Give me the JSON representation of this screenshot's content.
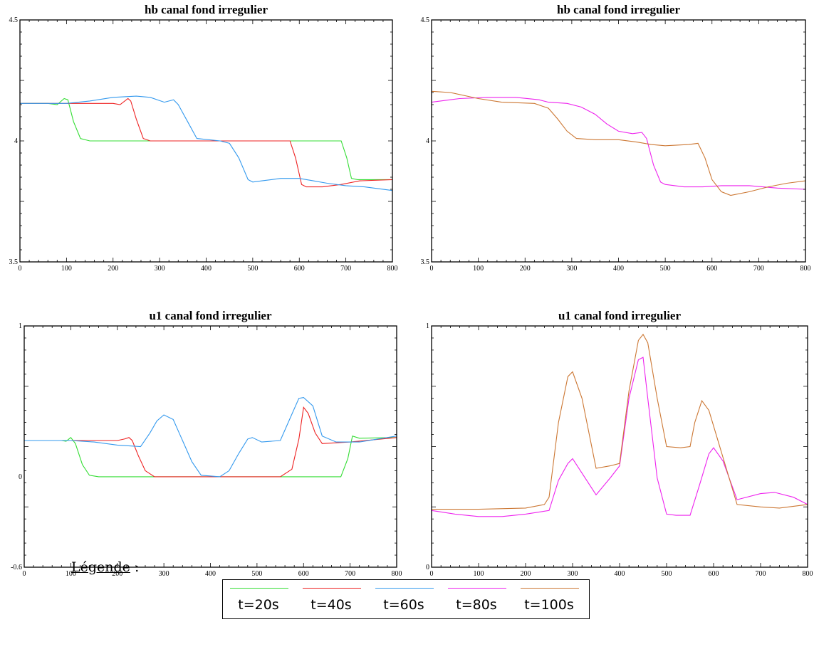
{
  "chart_data": [
    {
      "type": "line",
      "title": "hb canal fond irregulier",
      "xlim": [
        0,
        800
      ],
      "ylim": [
        3.5,
        4.5
      ],
      "xticks": [
        "0",
        "100",
        "200",
        "300",
        "400",
        "500",
        "600",
        "700",
        "800"
      ],
      "yticks": [
        "3.5",
        "4",
        "4.5"
      ],
      "series": [
        {
          "name": "t=20s",
          "color": "#33dd33",
          "points": [
            [
              0,
              4.155
            ],
            [
              60,
              4.155
            ],
            [
              80,
              4.15
            ],
            [
              95,
              4.175
            ],
            [
              103,
              4.17
            ],
            [
              115,
              4.08
            ],
            [
              130,
              4.01
            ],
            [
              150,
              4.0
            ],
            [
              400,
              4.0
            ],
            [
              690,
              4.0
            ],
            [
              702,
              3.93
            ],
            [
              712,
              3.845
            ],
            [
              725,
              3.84
            ],
            [
              800,
              3.84
            ]
          ]
        },
        {
          "name": "t=40s",
          "color": "#ee2222",
          "points": [
            [
              0,
              4.155
            ],
            [
              130,
              4.155
            ],
            [
              200,
              4.155
            ],
            [
              215,
              4.15
            ],
            [
              232,
              4.175
            ],
            [
              238,
              4.165
            ],
            [
              250,
              4.09
            ],
            [
              265,
              4.01
            ],
            [
              280,
              4.0
            ],
            [
              580,
              4.0
            ],
            [
              592,
              3.93
            ],
            [
              605,
              3.82
            ],
            [
              615,
              3.81
            ],
            [
              650,
              3.81
            ],
            [
              690,
              3.82
            ],
            [
              730,
              3.835
            ],
            [
              800,
              3.84
            ]
          ]
        },
        {
          "name": "t=60s",
          "color": "#3399ee",
          "points": [
            [
              0,
              4.155
            ],
            [
              100,
              4.155
            ],
            [
              150,
              4.165
            ],
            [
              200,
              4.18
            ],
            [
              250,
              4.185
            ],
            [
              280,
              4.18
            ],
            [
              310,
              4.16
            ],
            [
              330,
              4.17
            ],
            [
              340,
              4.15
            ],
            [
              360,
              4.08
            ],
            [
              380,
              4.01
            ],
            [
              430,
              4.0
            ],
            [
              450,
              3.99
            ],
            [
              470,
              3.93
            ],
            [
              490,
              3.84
            ],
            [
              500,
              3.83
            ],
            [
              520,
              3.835
            ],
            [
              560,
              3.845
            ],
            [
              600,
              3.845
            ],
            [
              630,
              3.835
            ],
            [
              660,
              3.825
            ],
            [
              700,
              3.815
            ],
            [
              740,
              3.81
            ],
            [
              800,
              3.795
            ]
          ]
        }
      ]
    },
    {
      "type": "line",
      "title": "hb canal fond irregulier",
      "xlim": [
        0,
        800
      ],
      "ylim": [
        3.5,
        4.5
      ],
      "xticks": [
        "0",
        "100",
        "200",
        "300",
        "400",
        "500",
        "600",
        "700",
        "800"
      ],
      "yticks": [
        "3.5",
        "4",
        "4.5"
      ],
      "series": [
        {
          "name": "t=80s",
          "color": "#ee22ee",
          "points": [
            [
              0,
              4.16
            ],
            [
              60,
              4.175
            ],
            [
              120,
              4.18
            ],
            [
              180,
              4.18
            ],
            [
              230,
              4.17
            ],
            [
              250,
              4.16
            ],
            [
              290,
              4.155
            ],
            [
              320,
              4.14
            ],
            [
              350,
              4.11
            ],
            [
              375,
              4.07
            ],
            [
              400,
              4.04
            ],
            [
              430,
              4.03
            ],
            [
              450,
              4.035
            ],
            [
              460,
              4.01
            ],
            [
              475,
              3.9
            ],
            [
              490,
              3.83
            ],
            [
              500,
              3.82
            ],
            [
              540,
              3.81
            ],
            [
              580,
              3.81
            ],
            [
              620,
              3.815
            ],
            [
              680,
              3.815
            ],
            [
              740,
              3.805
            ],
            [
              800,
              3.8
            ]
          ]
        },
        {
          "name": "t=100s",
          "color": "#cc7733",
          "points": [
            [
              0,
              4.205
            ],
            [
              40,
              4.2
            ],
            [
              100,
              4.175
            ],
            [
              150,
              4.16
            ],
            [
              220,
              4.155
            ],
            [
              250,
              4.135
            ],
            [
              270,
              4.09
            ],
            [
              290,
              4.04
            ],
            [
              310,
              4.01
            ],
            [
              350,
              4.005
            ],
            [
              400,
              4.005
            ],
            [
              440,
              3.995
            ],
            [
              470,
              3.985
            ],
            [
              500,
              3.98
            ],
            [
              550,
              3.985
            ],
            [
              570,
              3.99
            ],
            [
              585,
              3.93
            ],
            [
              600,
              3.84
            ],
            [
              620,
              3.79
            ],
            [
              640,
              3.775
            ],
            [
              680,
              3.79
            ],
            [
              720,
              3.81
            ],
            [
              760,
              3.825
            ],
            [
              800,
              3.835
            ]
          ]
        }
      ]
    },
    {
      "type": "line",
      "title": "u1 canal fond irregulier",
      "xlim": [
        0,
        800
      ],
      "ylim": [
        -0.6,
        1
      ],
      "xticks": [
        "0",
        "100",
        "200",
        "300",
        "400",
        "500",
        "600",
        "700",
        "800"
      ],
      "yticks": [
        "-0.6",
        "0",
        "1"
      ],
      "series": [
        {
          "name": "t=20s",
          "color": "#33dd33",
          "points": [
            [
              0,
              0.24
            ],
            [
              80,
              0.24
            ],
            [
              90,
              0.235
            ],
            [
              100,
              0.26
            ],
            [
              110,
              0.22
            ],
            [
              125,
              0.08
            ],
            [
              140,
              0.01
            ],
            [
              160,
              0.0
            ],
            [
              400,
              0.0
            ],
            [
              680,
              0.0
            ],
            [
              695,
              0.12
            ],
            [
              705,
              0.27
            ],
            [
              720,
              0.255
            ],
            [
              800,
              0.26
            ]
          ]
        },
        {
          "name": "t=40s",
          "color": "#ee2222",
          "points": [
            [
              0,
              0.24
            ],
            [
              150,
              0.24
            ],
            [
              200,
              0.24
            ],
            [
              215,
              0.25
            ],
            [
              225,
              0.26
            ],
            [
              232,
              0.24
            ],
            [
              245,
              0.14
            ],
            [
              260,
              0.04
            ],
            [
              280,
              0.0
            ],
            [
              550,
              0.0
            ],
            [
              575,
              0.05
            ],
            [
              590,
              0.25
            ],
            [
              600,
              0.46
            ],
            [
              610,
              0.42
            ],
            [
              625,
              0.29
            ],
            [
              640,
              0.22
            ],
            [
              700,
              0.23
            ],
            [
              800,
              0.26
            ]
          ]
        },
        {
          "name": "t=60s",
          "color": "#3399ee",
          "points": [
            [
              0,
              0.24
            ],
            [
              100,
              0.24
            ],
            [
              150,
              0.23
            ],
            [
              200,
              0.21
            ],
            [
              250,
              0.2
            ],
            [
              270,
              0.29
            ],
            [
              285,
              0.37
            ],
            [
              300,
              0.41
            ],
            [
              320,
              0.38
            ],
            [
              340,
              0.24
            ],
            [
              360,
              0.1
            ],
            [
              380,
              0.01
            ],
            [
              420,
              0.0
            ],
            [
              440,
              0.04
            ],
            [
              460,
              0.15
            ],
            [
              480,
              0.25
            ],
            [
              490,
              0.26
            ],
            [
              510,
              0.23
            ],
            [
              550,
              0.24
            ],
            [
              570,
              0.38
            ],
            [
              590,
              0.52
            ],
            [
              600,
              0.525
            ],
            [
              620,
              0.47
            ],
            [
              640,
              0.27
            ],
            [
              670,
              0.23
            ],
            [
              720,
              0.23
            ],
            [
              800,
              0.27
            ]
          ]
        }
      ]
    },
    {
      "type": "line",
      "title": "u1 canal fond irregulier",
      "xlim": [
        0,
        800
      ],
      "ylim": [
        0,
        1
      ],
      "xticks": [
        "0",
        "100",
        "200",
        "300",
        "400",
        "500",
        "600",
        "700",
        "800"
      ],
      "yticks": [
        "0",
        "1"
      ],
      "series": [
        {
          "name": "t=80s",
          "color": "#ee22ee",
          "points": [
            [
              0,
              0.235
            ],
            [
              50,
              0.22
            ],
            [
              100,
              0.21
            ],
            [
              150,
              0.21
            ],
            [
              200,
              0.22
            ],
            [
              250,
              0.235
            ],
            [
              270,
              0.36
            ],
            [
              290,
              0.43
            ],
            [
              300,
              0.45
            ],
            [
              320,
              0.39
            ],
            [
              350,
              0.3
            ],
            [
              380,
              0.37
            ],
            [
              400,
              0.42
            ],
            [
              420,
              0.7
            ],
            [
              440,
              0.86
            ],
            [
              450,
              0.87
            ],
            [
              460,
              0.7
            ],
            [
              480,
              0.37
            ],
            [
              500,
              0.22
            ],
            [
              520,
              0.215
            ],
            [
              550,
              0.215
            ],
            [
              570,
              0.34
            ],
            [
              590,
              0.47
            ],
            [
              600,
              0.495
            ],
            [
              620,
              0.44
            ],
            [
              650,
              0.28
            ],
            [
              700,
              0.305
            ],
            [
              730,
              0.31
            ],
            [
              770,
              0.29
            ],
            [
              800,
              0.26
            ]
          ]
        },
        {
          "name": "t=100s",
          "color": "#cc7733",
          "points": [
            [
              0,
              0.24
            ],
            [
              100,
              0.24
            ],
            [
              200,
              0.245
            ],
            [
              240,
              0.26
            ],
            [
              250,
              0.29
            ],
            [
              270,
              0.6
            ],
            [
              290,
              0.79
            ],
            [
              300,
              0.81
            ],
            [
              320,
              0.7
            ],
            [
              350,
              0.41
            ],
            [
              380,
              0.42
            ],
            [
              400,
              0.43
            ],
            [
              420,
              0.73
            ],
            [
              440,
              0.94
            ],
            [
              450,
              0.965
            ],
            [
              460,
              0.93
            ],
            [
              480,
              0.7
            ],
            [
              500,
              0.5
            ],
            [
              530,
              0.495
            ],
            [
              550,
              0.5
            ],
            [
              560,
              0.6
            ],
            [
              575,
              0.69
            ],
            [
              590,
              0.65
            ],
            [
              610,
              0.52
            ],
            [
              650,
              0.26
            ],
            [
              700,
              0.25
            ],
            [
              740,
              0.245
            ],
            [
              800,
              0.26
            ]
          ]
        }
      ]
    }
  ],
  "legend": {
    "heading": "Légende",
    "colon": " :",
    "items": [
      {
        "label": "t=20s",
        "color": "#33dd33"
      },
      {
        "label": "t=40s",
        "color": "#ee2222"
      },
      {
        "label": "t=60s",
        "color": "#3399ee"
      },
      {
        "label": "t=80s",
        "color": "#ee22ee"
      },
      {
        "label": "t=100s",
        "color": "#cc7733"
      }
    ]
  }
}
